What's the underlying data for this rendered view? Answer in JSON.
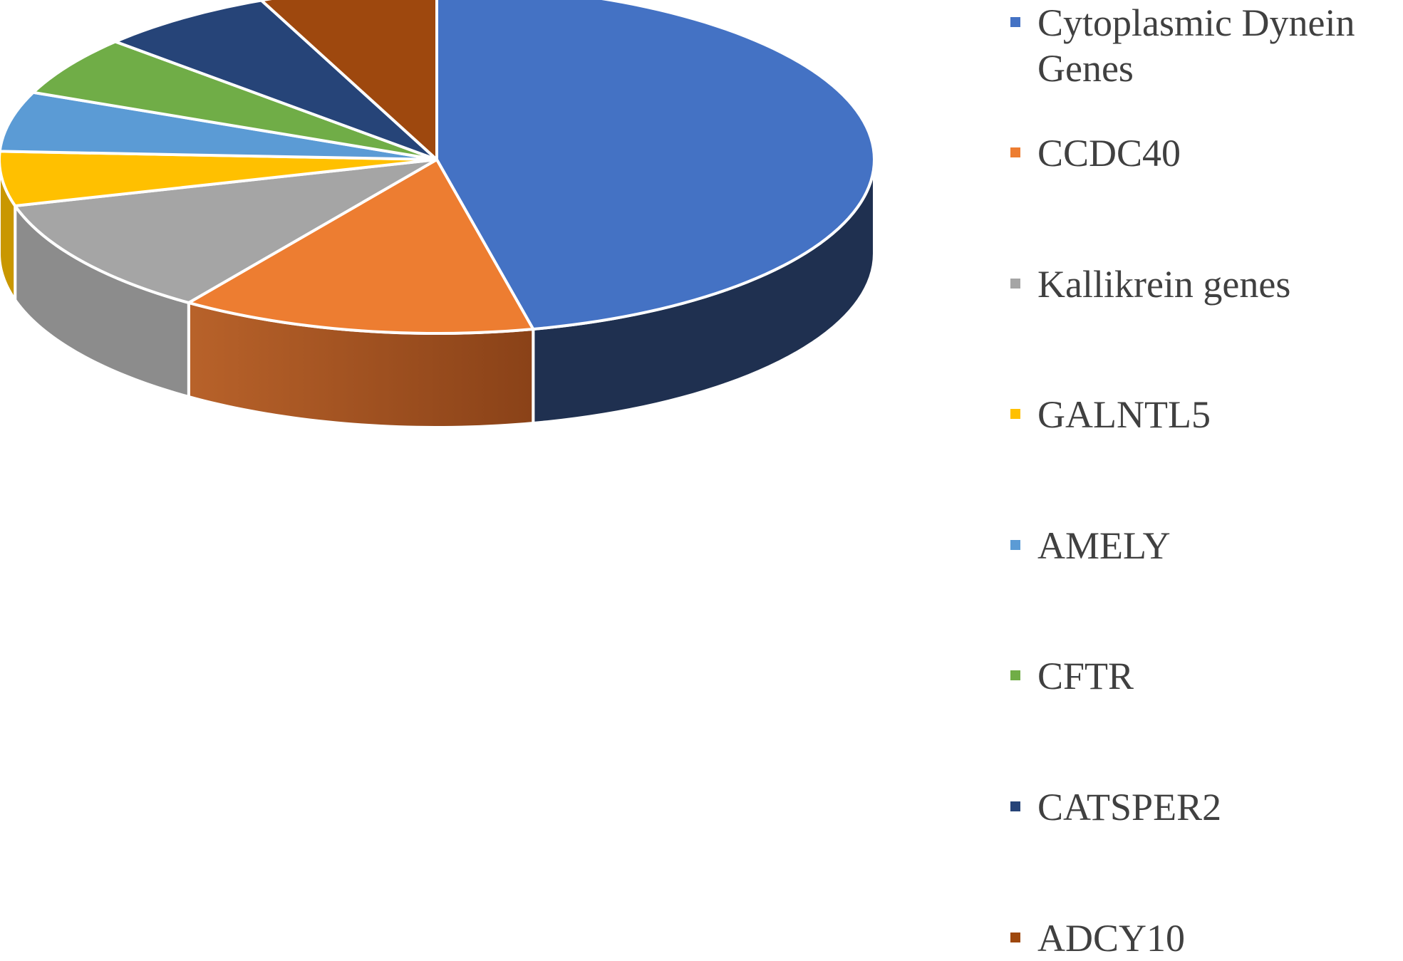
{
  "chart_data": {
    "type": "pie",
    "title": "",
    "three_d": true,
    "legend_position": "right",
    "series": [
      {
        "values": [
          46,
          13,
          11,
          5,
          5.5,
          5.5,
          6.5,
          6.5
        ]
      }
    ],
    "categories": [
      "Cytoplasmic Dynein Genes",
      "CCDC40",
      "Kallikrein genes",
      "GALNTL5",
      "AMELY",
      "CFTR",
      "CATSPER2",
      "ADCY10"
    ],
    "colors": [
      "#4472C4",
      "#ED7D31",
      "#A5A5A5",
      "#FFC000",
      "#5B9BD5",
      "#70AD47",
      "#264478",
      "#9E480E"
    ],
    "side_colors": [
      "#1F3050",
      "#8F4517",
      "#8C8C8C",
      "#C99700",
      "#3F73A3",
      "#4E7C31",
      "#172B4D",
      "#6B3009"
    ]
  }
}
